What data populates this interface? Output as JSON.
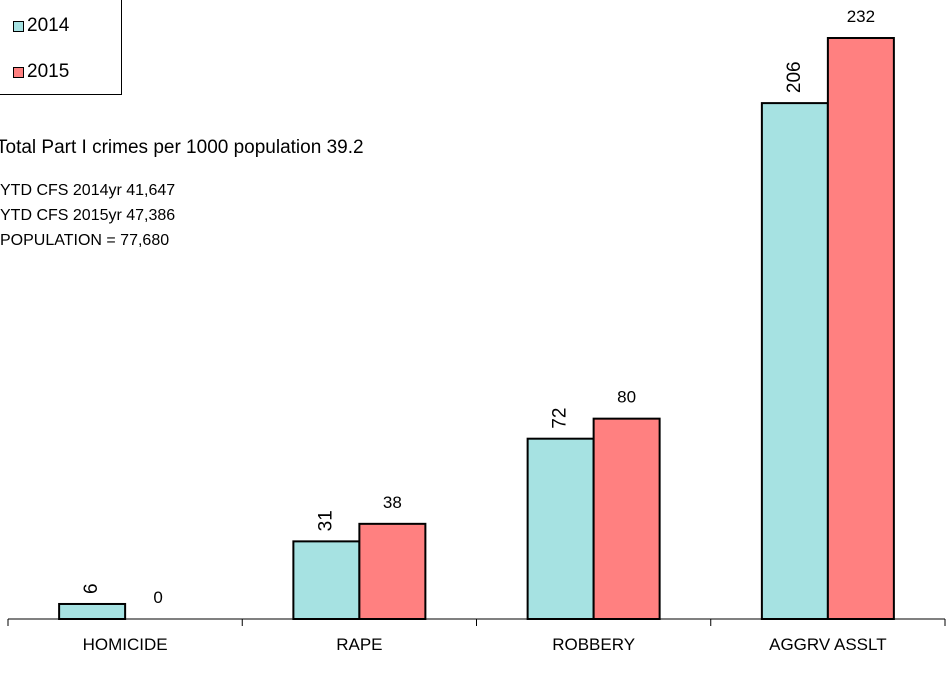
{
  "chart_data": {
    "type": "bar",
    "categories": [
      "HOMICIDE",
      "RAPE",
      "ROBBERY",
      "AGGRV ASSLT"
    ],
    "series": [
      {
        "name": "2014",
        "values": [
          6,
          31,
          72,
          206
        ],
        "color": "#a6e2e2"
      },
      {
        "name": "2015",
        "values": [
          0,
          38,
          80,
          232
        ],
        "color": "#ff8080"
      }
    ],
    "data_labels": {
      "2014": [
        "6",
        "31",
        "72",
        "206"
      ],
      "2015": [
        "0",
        "38",
        "80",
        "232"
      ]
    },
    "ylim": [
      0,
      240
    ],
    "legend_position": "top-left",
    "grid": false,
    "annotations": [
      "Total Part I crimes per 1000 population 39.2",
      "YTD CFS 2014yr  41,647",
      "YTD CFS 2015yr  47,386",
      "POPULATION = 77,680"
    ]
  },
  "legend": {
    "items": [
      {
        "label": "2014",
        "color": "#a6e2e2"
      },
      {
        "label": "2015",
        "color": "#ff8080"
      }
    ]
  }
}
